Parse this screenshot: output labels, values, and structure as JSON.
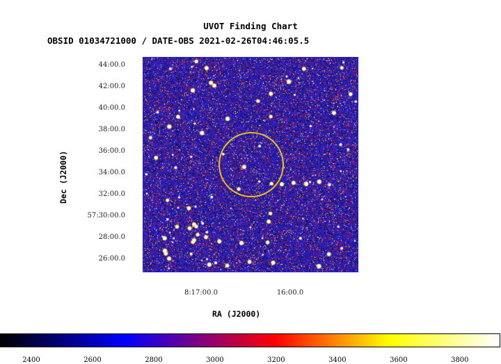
{
  "chart_data": {
    "type": "heatmap",
    "title": "UVOT Finding Chart",
    "subtitle": "OBSID 01034721000 / DATE-OBS 2021-02-26T04:46:05.5",
    "xlabel": "RA (J2000)",
    "ylabel": "Dec (J2000)",
    "x_ticks": [
      "8:17:00.0",
      "16:00.0"
    ],
    "y_ticks": [
      "44:00.0",
      "42:00.0",
      "40:00.0",
      "38:00.0",
      "36:00.0",
      "34:00.0",
      "32:00.0",
      "57:30:00.0",
      "28:00.0",
      "26:00.0"
    ],
    "colorbar": {
      "ticks": [
        2400,
        2600,
        2800,
        3000,
        3200,
        3400,
        3600,
        3800
      ],
      "range": [
        2300,
        3930
      ],
      "colormap": [
        "#000000",
        "#0000ff",
        "#ff0000",
        "#ffff00",
        "#ffffff"
      ]
    },
    "source_circle_color": "#e6c21a",
    "frame_color": "#1a1aff"
  }
}
